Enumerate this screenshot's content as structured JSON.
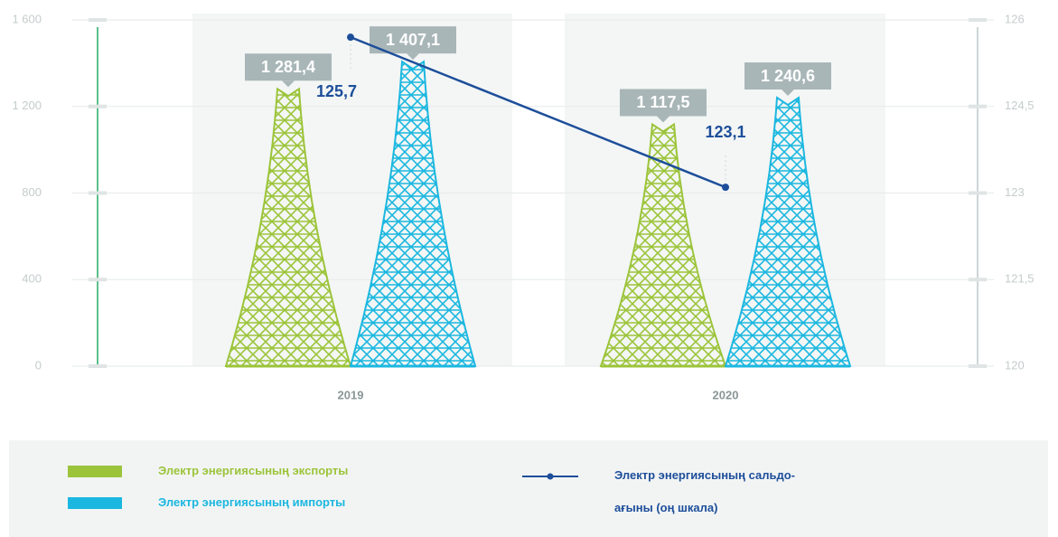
{
  "chart_data": {
    "type": "bar",
    "categories": [
      "2019",
      "2020"
    ],
    "series": [
      {
        "name": "Электр энергиясының экспорты",
        "color": "#9cc43a",
        "values": [
          1281.4,
          1117.5
        ],
        "value_labels": [
          "1 281,4",
          "1 117,5"
        ]
      },
      {
        "name": "Электр энергиясының импорты",
        "color": "#1bb7e0",
        "values": [
          1407.1,
          1240.6
        ],
        "value_labels": [
          "1 407,1",
          "1 240,6"
        ]
      },
      {
        "name": "Электр энергиясының сальдо-ағыны (оң шкала)",
        "type": "line",
        "axis": "y2",
        "color": "#1d4e9a",
        "values": [
          125.7,
          123.1
        ],
        "value_labels": [
          "125,7",
          "123,1"
        ]
      }
    ],
    "ylim": [
      0,
      1600
    ],
    "yticks": [
      0,
      400,
      800,
      {
        "value": 1200,
        "label": "1 200"
      },
      {
        "value": 1600,
        "label": "1 600"
      }
    ],
    "y2lim": [
      120,
      126
    ],
    "y2ticks": [
      120,
      {
        "value": 121.5,
        "label": "121,5"
      },
      123,
      {
        "value": 124.5,
        "label": "124,5"
      },
      126
    ],
    "grid": true
  }
}
